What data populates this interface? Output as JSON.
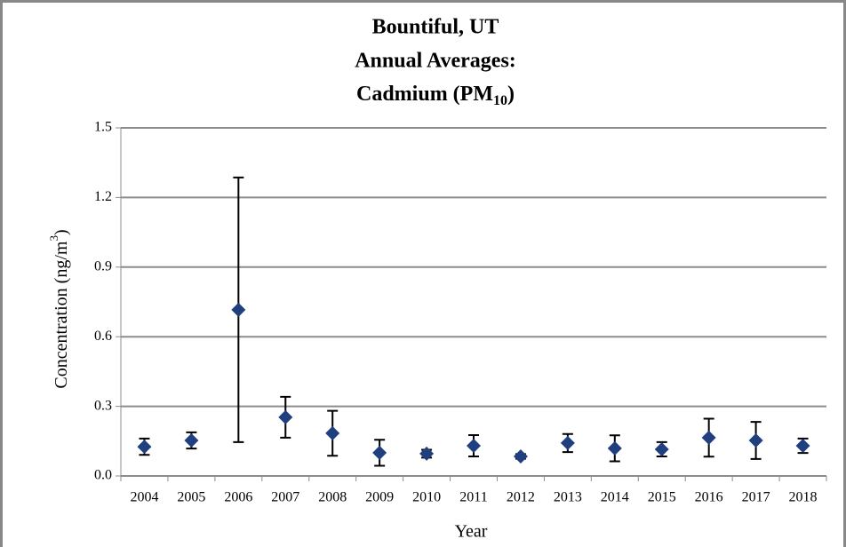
{
  "chart_data": {
    "type": "errorbar-scatter",
    "title": [
      "Bountiful, UT",
      "Annual Averages:",
      [
        "Cadmium (PM",
        "10",
        ")"
      ]
    ],
    "xlabel": "Year",
    "ylabel": [
      "Concentration (ng/m",
      "3",
      ")"
    ],
    "categories": [
      "2004",
      "2005",
      "2006",
      "2007",
      "2008",
      "2009",
      "2010",
      "2011",
      "2012",
      "2013",
      "2014",
      "2015",
      "2016",
      "2017",
      "2018"
    ],
    "values": [
      0.126,
      0.153,
      0.716,
      0.253,
      0.184,
      0.1,
      0.096,
      0.13,
      0.084,
      0.142,
      0.119,
      0.115,
      0.165,
      0.153,
      0.13
    ],
    "errors": [
      0.035,
      0.035,
      0.57,
      0.088,
      0.097,
      0.056,
      0.017,
      0.046,
      0.01,
      0.039,
      0.056,
      0.031,
      0.082,
      0.08,
      0.031
    ],
    "color": "#1f3f7f",
    "error_color": "#000000",
    "ylim": [
      0,
      1.5
    ],
    "yticks": [
      {
        "value": 0,
        "label": "0.0"
      },
      0.3,
      0.6,
      0.9,
      1.2,
      1.5
    ],
    "grid": true
  }
}
